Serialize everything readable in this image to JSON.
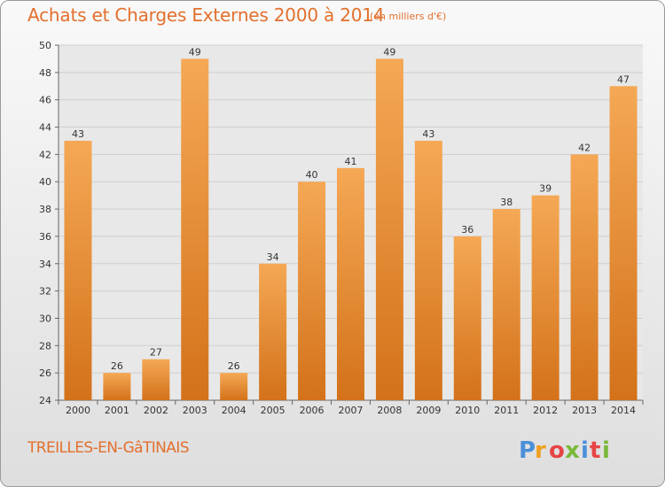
{
  "title": "Achats et Charges Externes 2000 à 2014",
  "subtitle": "(en milliers d'€)",
  "commune": "TREILLES-EN-GâTINAIS",
  "logo_text": "Proxiti",
  "colors": {
    "title": "#e2702e",
    "bar_light": "#f5a855",
    "bar_dark": "#d3721a",
    "grid": "#cfcfcf"
  },
  "chart_data": {
    "type": "bar",
    "title": "Achats et Charges Externes 2000 à 2014",
    "subtitle": "(en milliers d'€)",
    "categories": [
      "2000",
      "2001",
      "2002",
      "2003",
      "2004",
      "2005",
      "2006",
      "2007",
      "2008",
      "2009",
      "2010",
      "2011",
      "2012",
      "2013",
      "2014"
    ],
    "values": [
      43,
      26,
      27,
      49,
      26,
      34,
      40,
      41,
      49,
      43,
      36,
      38,
      39,
      42,
      47
    ],
    "ylim": [
      24,
      50
    ],
    "yticks": [
      24,
      26,
      28,
      30,
      32,
      34,
      36,
      38,
      40,
      42,
      44,
      46,
      48,
      50
    ],
    "grid": true,
    "data_labels": true
  }
}
